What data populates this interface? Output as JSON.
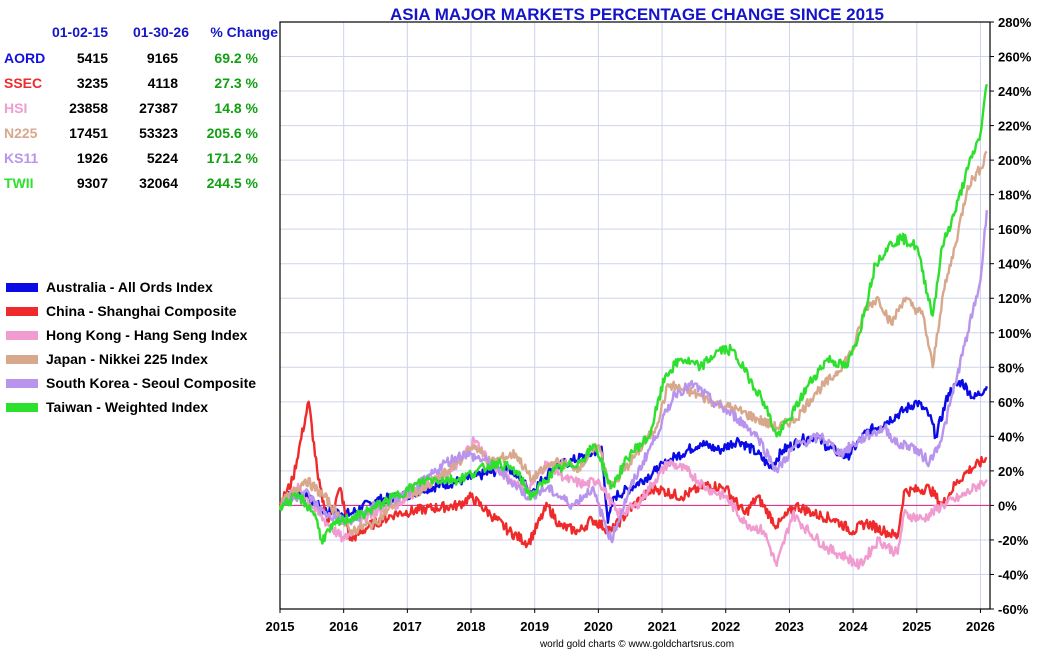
{
  "chart_data": {
    "type": "line",
    "title": "ASIA MAJOR MARKETS PERCENTAGE CHANGE SINCE 2015",
    "credit": "world gold charts © www.goldchartsrus.com",
    "x_ticks": [
      "2015",
      "2016",
      "2017",
      "2018",
      "2019",
      "2020",
      "2021",
      "2022",
      "2023",
      "2024",
      "2025",
      "2026"
    ],
    "y_ticks": [
      "280%",
      "260%",
      "240%",
      "220%",
      "200%",
      "180%",
      "160%",
      "140%",
      "120%",
      "100%",
      "80%",
      "60%",
      "40%",
      "20%",
      "0%",
      "-20%",
      "-40%",
      "-60%"
    ],
    "xlim": [
      2015.0,
      2026.15
    ],
    "ylim": [
      -60,
      280
    ],
    "ylabel_side": "right",
    "grid": true,
    "reference_line": 0,
    "table": {
      "headers": [
        "01-02-15",
        "01-30-26",
        "% Change"
      ],
      "rows": [
        {
          "code": "AORD",
          "start": "5415",
          "end": "9165",
          "change": "69.2 %",
          "color": "#1010e0"
        },
        {
          "code": "SSEC",
          "start": "3235",
          "end": "4118",
          "change": "27.3 %",
          "color": "#ee2a2a"
        },
        {
          "code": "HSI",
          "start": "23858",
          "end": "27387",
          "change": "14.8 %",
          "color": "#f09cd0"
        },
        {
          "code": "N225",
          "start": "17451",
          "end": "53323",
          "change": "205.6 %",
          "color": "#d8a88c"
        },
        {
          "code": "KS11",
          "start": "1926",
          "end": "5224",
          "change": "171.2 %",
          "color": "#b894ec"
        },
        {
          "code": "TWII",
          "start": "9307",
          "end": "32064",
          "change": "244.5 %",
          "color": "#2ee02e"
        }
      ]
    },
    "series": [
      {
        "name": "Australia - All Ords Index",
        "color": "#0a0ae6",
        "points": [
          [
            2015.0,
            0
          ],
          [
            2015.2,
            8
          ],
          [
            2015.4,
            5
          ],
          [
            2015.7,
            -3
          ],
          [
            2016.1,
            -5
          ],
          [
            2016.5,
            3
          ],
          [
            2016.9,
            5
          ],
          [
            2017.3,
            10
          ],
          [
            2017.8,
            14
          ],
          [
            2018.2,
            18
          ],
          [
            2018.6,
            22
          ],
          [
            2018.95,
            8
          ],
          [
            2019.3,
            22
          ],
          [
            2019.6,
            26
          ],
          [
            2019.9,
            30
          ],
          [
            2020.05,
            34
          ],
          [
            2020.15,
            -10
          ],
          [
            2020.25,
            5
          ],
          [
            2020.5,
            10
          ],
          [
            2020.9,
            20
          ],
          [
            2021.2,
            28
          ],
          [
            2021.6,
            36
          ],
          [
            2021.9,
            32
          ],
          [
            2022.2,
            38
          ],
          [
            2022.5,
            30
          ],
          [
            2022.7,
            22
          ],
          [
            2022.9,
            32
          ],
          [
            2023.2,
            38
          ],
          [
            2023.4,
            40
          ],
          [
            2023.6,
            34
          ],
          [
            2023.9,
            28
          ],
          [
            2024.2,
            42
          ],
          [
            2024.5,
            48
          ],
          [
            2024.8,
            55
          ],
          [
            2025.0,
            60
          ],
          [
            2025.2,
            52
          ],
          [
            2025.3,
            40
          ],
          [
            2025.5,
            65
          ],
          [
            2025.7,
            72
          ],
          [
            2025.9,
            62
          ],
          [
            2026.1,
            69
          ]
        ]
      },
      {
        "name": "China - Shanghai Composite",
        "color": "#ee2a2a",
        "points": [
          [
            2015.0,
            0
          ],
          [
            2015.2,
            15
          ],
          [
            2015.45,
            60
          ],
          [
            2015.6,
            15
          ],
          [
            2015.75,
            -10
          ],
          [
            2015.95,
            10
          ],
          [
            2016.1,
            -20
          ],
          [
            2016.4,
            -12
          ],
          [
            2016.8,
            -5
          ],
          [
            2017.3,
            -2
          ],
          [
            2017.8,
            0
          ],
          [
            2018.0,
            5
          ],
          [
            2018.3,
            -5
          ],
          [
            2018.6,
            -15
          ],
          [
            2018.9,
            -22
          ],
          [
            2019.2,
            0
          ],
          [
            2019.4,
            -12
          ],
          [
            2019.7,
            -15
          ],
          [
            2019.9,
            -8
          ],
          [
            2020.2,
            -15
          ],
          [
            2020.6,
            2
          ],
          [
            2020.9,
            10
          ],
          [
            2021.3,
            5
          ],
          [
            2021.7,
            12
          ],
          [
            2022.0,
            10
          ],
          [
            2022.3,
            -5
          ],
          [
            2022.5,
            5
          ],
          [
            2022.8,
            -12
          ],
          [
            2023.1,
            0
          ],
          [
            2023.4,
            -5
          ],
          [
            2023.7,
            -8
          ],
          [
            2024.0,
            -15
          ],
          [
            2024.2,
            -10
          ],
          [
            2024.5,
            -15
          ],
          [
            2024.7,
            -18
          ],
          [
            2024.8,
            8
          ],
          [
            2025.2,
            10
          ],
          [
            2025.4,
            0
          ],
          [
            2025.6,
            12
          ],
          [
            2025.8,
            20
          ],
          [
            2026.1,
            27
          ]
        ]
      },
      {
        "name": "Hong Kong - Hang Seng Index",
        "color": "#f09cd0",
        "points": [
          [
            2015.0,
            0
          ],
          [
            2015.3,
            10
          ],
          [
            2015.6,
            -5
          ],
          [
            2016.0,
            -20
          ],
          [
            2016.4,
            -5
          ],
          [
            2016.8,
            0
          ],
          [
            2017.2,
            10
          ],
          [
            2017.7,
            20
          ],
          [
            2018.05,
            38
          ],
          [
            2018.3,
            25
          ],
          [
            2018.6,
            15
          ],
          [
            2018.9,
            10
          ],
          [
            2019.2,
            25
          ],
          [
            2019.5,
            15
          ],
          [
            2019.8,
            12
          ],
          [
            2020.0,
            15
          ],
          [
            2020.3,
            -5
          ],
          [
            2020.6,
            0
          ],
          [
            2020.9,
            15
          ],
          [
            2021.1,
            25
          ],
          [
            2021.4,
            20
          ],
          [
            2021.7,
            10
          ],
          [
            2022.0,
            5
          ],
          [
            2022.3,
            -10
          ],
          [
            2022.6,
            -15
          ],
          [
            2022.8,
            -35
          ],
          [
            2023.05,
            -5
          ],
          [
            2023.3,
            -15
          ],
          [
            2023.6,
            -25
          ],
          [
            2023.9,
            -30
          ],
          [
            2024.1,
            -35
          ],
          [
            2024.4,
            -20
          ],
          [
            2024.7,
            -28
          ],
          [
            2024.8,
            -5
          ],
          [
            2025.1,
            -8
          ],
          [
            2025.4,
            0
          ],
          [
            2025.7,
            5
          ],
          [
            2026.1,
            15
          ]
        ]
      },
      {
        "name": "Japan - Nikkei 225 Index",
        "color": "#d8a88c",
        "points": [
          [
            2015.0,
            0
          ],
          [
            2015.4,
            15
          ],
          [
            2015.7,
            5
          ],
          [
            2016.1,
            -15
          ],
          [
            2016.5,
            -10
          ],
          [
            2016.9,
            5
          ],
          [
            2017.3,
            10
          ],
          [
            2017.8,
            25
          ],
          [
            2018.05,
            35
          ],
          [
            2018.3,
            25
          ],
          [
            2018.7,
            30
          ],
          [
            2018.95,
            15
          ],
          [
            2019.3,
            25
          ],
          [
            2019.7,
            22
          ],
          [
            2020.0,
            35
          ],
          [
            2020.2,
            10
          ],
          [
            2020.5,
            25
          ],
          [
            2020.9,
            45
          ],
          [
            2021.1,
            70
          ],
          [
            2021.5,
            65
          ],
          [
            2021.8,
            60
          ],
          [
            2022.2,
            55
          ],
          [
            2022.5,
            50
          ],
          [
            2022.8,
            45
          ],
          [
            2023.1,
            50
          ],
          [
            2023.4,
            65
          ],
          [
            2023.7,
            75
          ],
          [
            2024.0,
            90
          ],
          [
            2024.2,
            115
          ],
          [
            2024.4,
            120
          ],
          [
            2024.6,
            105
          ],
          [
            2024.8,
            120
          ],
          [
            2025.1,
            110
          ],
          [
            2025.25,
            80
          ],
          [
            2025.4,
            120
          ],
          [
            2025.6,
            150
          ],
          [
            2025.8,
            185
          ],
          [
            2026.0,
            195
          ],
          [
            2026.1,
            205
          ]
        ]
      },
      {
        "name": "South Korea - Seoul Composite",
        "color": "#b894ec",
        "points": [
          [
            2015.0,
            0
          ],
          [
            2015.4,
            8
          ],
          [
            2015.7,
            -5
          ],
          [
            2016.1,
            -10
          ],
          [
            2016.5,
            0
          ],
          [
            2016.9,
            5
          ],
          [
            2017.3,
            15
          ],
          [
            2017.6,
            25
          ],
          [
            2017.9,
            30
          ],
          [
            2018.3,
            25
          ],
          [
            2018.6,
            15
          ],
          [
            2018.9,
            5
          ],
          [
            2019.2,
            10
          ],
          [
            2019.6,
            0
          ],
          [
            2019.9,
            10
          ],
          [
            2020.2,
            -20
          ],
          [
            2020.5,
            10
          ],
          [
            2020.9,
            40
          ],
          [
            2021.2,
            65
          ],
          [
            2021.5,
            70
          ],
          [
            2021.8,
            60
          ],
          [
            2022.2,
            50
          ],
          [
            2022.5,
            40
          ],
          [
            2022.8,
            20
          ],
          [
            2023.1,
            35
          ],
          [
            2023.5,
            40
          ],
          [
            2023.8,
            30
          ],
          [
            2024.2,
            40
          ],
          [
            2024.5,
            45
          ],
          [
            2024.7,
            35
          ],
          [
            2024.9,
            35
          ],
          [
            2025.2,
            25
          ],
          [
            2025.4,
            40
          ],
          [
            2025.6,
            70
          ],
          [
            2025.8,
            100
          ],
          [
            2026.0,
            130
          ],
          [
            2026.1,
            171
          ]
        ]
      },
      {
        "name": "Taiwan - Weighted Index",
        "color": "#2ee02e",
        "points": [
          [
            2015.0,
            0
          ],
          [
            2015.3,
            5
          ],
          [
            2015.55,
            -5
          ],
          [
            2015.65,
            -20
          ],
          [
            2015.9,
            -10
          ],
          [
            2016.3,
            -5
          ],
          [
            2016.8,
            5
          ],
          [
            2017.3,
            15
          ],
          [
            2017.8,
            15
          ],
          [
            2018.1,
            20
          ],
          [
            2018.4,
            25
          ],
          [
            2018.7,
            20
          ],
          [
            2018.95,
            5
          ],
          [
            2019.3,
            20
          ],
          [
            2019.7,
            25
          ],
          [
            2019.95,
            35
          ],
          [
            2020.2,
            10
          ],
          [
            2020.5,
            30
          ],
          [
            2020.8,
            40
          ],
          [
            2021.05,
            75
          ],
          [
            2021.3,
            85
          ],
          [
            2021.6,
            80
          ],
          [
            2021.9,
            90
          ],
          [
            2022.1,
            90
          ],
          [
            2022.35,
            75
          ],
          [
            2022.6,
            60
          ],
          [
            2022.8,
            40
          ],
          [
            2023.0,
            50
          ],
          [
            2023.3,
            70
          ],
          [
            2023.6,
            85
          ],
          [
            2023.9,
            80
          ],
          [
            2024.1,
            100
          ],
          [
            2024.35,
            140
          ],
          [
            2024.55,
            150
          ],
          [
            2024.75,
            155
          ],
          [
            2025.0,
            150
          ],
          [
            2025.25,
            110
          ],
          [
            2025.4,
            150
          ],
          [
            2025.6,
            170
          ],
          [
            2025.8,
            195
          ],
          [
            2026.0,
            215
          ],
          [
            2026.1,
            244
          ]
        ]
      }
    ]
  }
}
